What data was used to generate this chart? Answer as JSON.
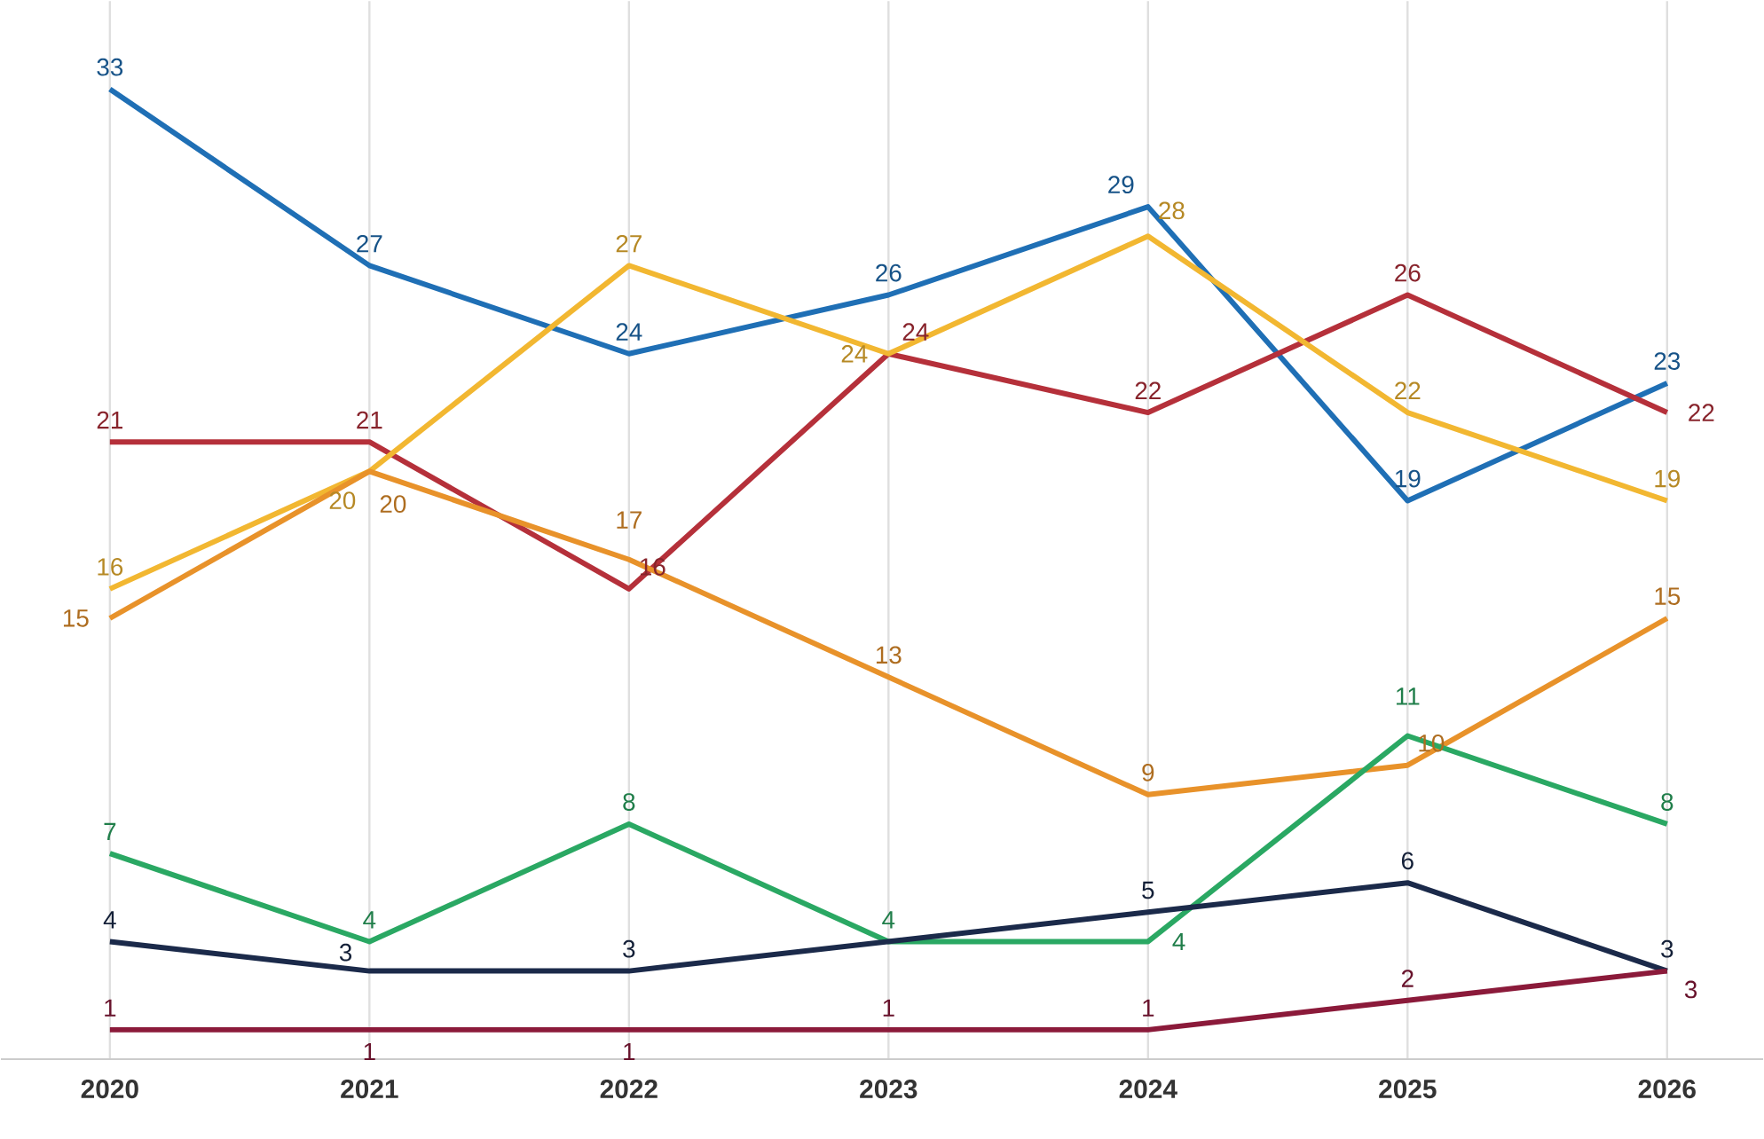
{
  "chart_data": {
    "type": "line",
    "categories": [
      "2020",
      "2021",
      "2022",
      "2023",
      "2024",
      "2025",
      "2026"
    ],
    "series": [
      {
        "color": "#1f6fb5",
        "values": [
          33,
          27,
          24,
          26,
          29,
          19,
          23
        ],
        "value_labels": [
          "33",
          "27",
          "24",
          "26",
          "29",
          "19",
          "23"
        ]
      },
      {
        "color": "#b5303a",
        "values": [
          21,
          21,
          16,
          24,
          22,
          26,
          22
        ],
        "value_labels": [
          "21",
          "21",
          "16",
          "24",
          "22",
          "26",
          "22"
        ]
      },
      {
        "color": "#f2b731",
        "values": [
          16,
          20,
          27,
          24,
          28,
          22,
          19
        ],
        "value_labels": [
          "16",
          "20",
          "27",
          "24",
          "28",
          "22",
          "19"
        ]
      },
      {
        "color": "#e8922a",
        "values": [
          15,
          20,
          17,
          13,
          9,
          10,
          15
        ],
        "value_labels": [
          "15",
          "20",
          "17",
          "13",
          "9",
          "10",
          "15"
        ]
      },
      {
        "color": "#2aa863",
        "values": [
          7,
          4,
          8,
          4,
          4,
          11,
          8
        ],
        "value_labels": [
          "7",
          "4",
          "8",
          "4",
          "4",
          "11",
          "8"
        ]
      },
      {
        "color": "#1b2a4a",
        "values": [
          4,
          3,
          3,
          4,
          5,
          6,
          3
        ],
        "value_labels": [
          "4",
          "3",
          "3",
          null,
          "5",
          "6",
          "3"
        ]
      },
      {
        "color": "#8b1a3a",
        "values": [
          1,
          1,
          1,
          1,
          1,
          2,
          3
        ],
        "value_labels": [
          "1",
          "1",
          "1",
          "1",
          "1",
          "2",
          "3"
        ]
      }
    ],
    "ylim": [
      0,
      36
    ],
    "grid": "x",
    "tick_labels": "x",
    "marker": "none",
    "line_style": "solid"
  }
}
